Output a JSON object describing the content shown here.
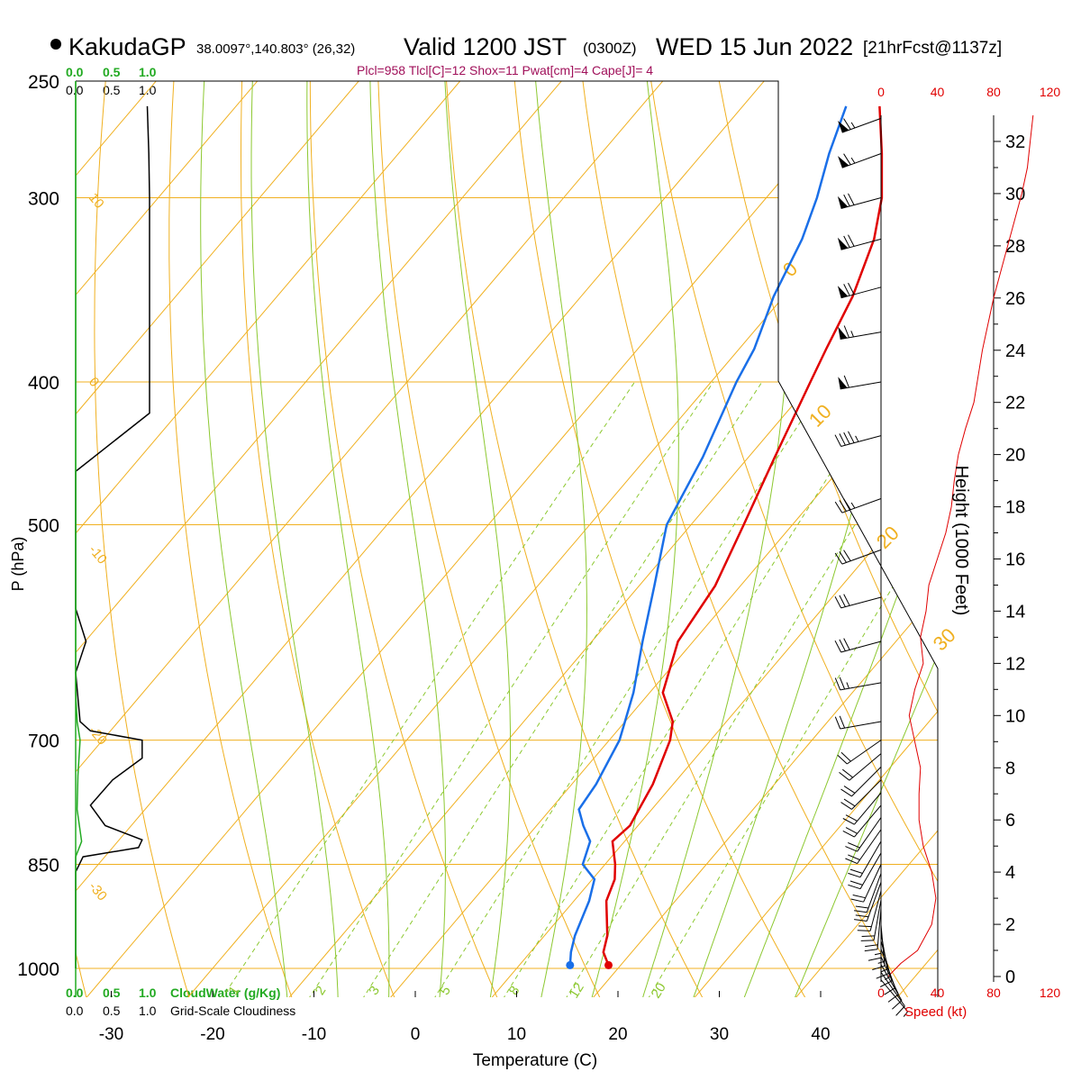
{
  "header": {
    "station": "KakudaGP",
    "coords": "38.0097°,140.803° (26,32)",
    "valid_label": "Valid 1200 JST",
    "zulu": "(0300Z)",
    "date": "WED 15 Jun 2022",
    "fcst": "[21hrFcst@1137z]",
    "indices": "Plcl=958 Tlcl[C]=12 Shox=11 Pwat[cm]=4 Cape[J]= 4"
  },
  "cloud_scale_top_green": [
    "0.0",
    "0.5",
    "1.0"
  ],
  "cloud_scale_top_black": [
    "0.0",
    "0.5",
    "1.0"
  ],
  "cloud_scale_bottom_green": [
    "0.0",
    "0.5",
    "1.0"
  ],
  "cloud_scale_bottom_black": [
    "0.0",
    "0.5",
    "1.0"
  ],
  "legend": {
    "cloudwater": "CloudWater (g/Kg)",
    "cloudiness": "Grid-Scale Cloudiness"
  },
  "axes": {
    "xlabel": "Temperature (C)",
    "ylabel": "P (hPa)",
    "height_label": "Height (1000 Feet)",
    "speed_label": "Speed (kt)"
  },
  "colors": {
    "isotherm": "#f0b020",
    "dry_adiabat": "#8cc830",
    "mixing_ratio": "#8cc830",
    "temperature": "#e00000",
    "dewpoint": "#1a6fe8",
    "cloud_water": "#22aa22",
    "cloudiness": "#000000",
    "index_text": "#a0105a",
    "speed": "#e00000"
  },
  "chart_data": {
    "type": "line",
    "title": "",
    "x_ticks": [
      "-30",
      "-20",
      "-10",
      "0",
      "10",
      "20",
      "30",
      "40"
    ],
    "xlim": [
      -35,
      43
    ],
    "p_ticks": [
      "250",
      "300",
      "400",
      "500",
      "700",
      "850",
      "1000"
    ],
    "p_tick_values": [
      250,
      300,
      400,
      500,
      700,
      850,
      1000
    ],
    "ylim_hpa": [
      1020,
      250
    ],
    "isotherm_labels": [
      {
        "text": "10",
        "t": 10,
        "p": 300
      },
      {
        "text": "0",
        "t": 0,
        "p": 400
      },
      {
        "text": "-10",
        "t": -10,
        "p": 520
      },
      {
        "text": "-20",
        "t": -20,
        "p": 690
      },
      {
        "text": "-30",
        "t": -30,
        "p": 880
      }
    ],
    "theta_labels": [
      {
        "text": "0",
        "p": 340
      },
      {
        "text": "10",
        "p": 430
      },
      {
        "text": "20",
        "p": 520
      },
      {
        "text": "30",
        "p": 610
      }
    ],
    "mixing_ratio_labels": [
      "1",
      "2",
      "3",
      "5",
      "8",
      "12",
      "20"
    ],
    "mixing_ratio_values": [
      1,
      2,
      3,
      5,
      8,
      12,
      20
    ],
    "series": [
      {
        "name": "",
        "points": [
          [
            260,
            -26.5
          ],
          [
            280,
            -22.3
          ],
          [
            300,
            -18.6
          ],
          [
            320,
            -15.9
          ],
          [
            350,
            -13.2
          ],
          [
            380,
            -11.4
          ],
          [
            400,
            -10.2
          ],
          [
            450,
            -7.4
          ],
          [
            500,
            -4.8
          ],
          [
            550,
            -2.5
          ],
          [
            600,
            -1.5
          ],
          [
            650,
            1.3
          ],
          [
            680,
            4.7
          ],
          [
            700,
            6.0
          ],
          [
            750,
            8.0
          ],
          [
            800,
            9.2
          ],
          [
            820,
            8.8
          ],
          [
            850,
            11.0
          ],
          [
            870,
            12.2
          ],
          [
            900,
            13.2
          ],
          [
            950,
            16.2
          ],
          [
            975,
            17.2
          ],
          [
            995,
            18.8
          ]
        ]
      },
      {
        "name": "",
        "points": [
          [
            260,
            -29.8
          ],
          [
            280,
            -27.5
          ],
          [
            300,
            -25.0
          ],
          [
            320,
            -23.0
          ],
          [
            350,
            -21.0
          ],
          [
            380,
            -18.5
          ],
          [
            400,
            -17.5
          ],
          [
            450,
            -14.5
          ],
          [
            500,
            -12.4
          ],
          [
            550,
            -8.5
          ],
          [
            600,
            -5.0
          ],
          [
            650,
            -1.6
          ],
          [
            700,
            1.0
          ],
          [
            750,
            2.4
          ],
          [
            780,
            2.8
          ],
          [
            800,
            4.6
          ],
          [
            820,
            6.6
          ],
          [
            850,
            7.8
          ],
          [
            870,
            10.2
          ],
          [
            900,
            11.5
          ],
          [
            950,
            13.0
          ],
          [
            975,
            14.0
          ],
          [
            995,
            15.0
          ]
        ]
      }
    ],
    "cloud_water": [
      [
        250,
        0
      ],
      [
        650,
        0
      ],
      [
        680,
        0.02
      ],
      [
        700,
        0.06
      ],
      [
        740,
        0.03
      ],
      [
        780,
        0.02
      ],
      [
        820,
        0.08
      ],
      [
        840,
        0.0
      ],
      [
        1000,
        0
      ]
    ],
    "cloudiness": [
      [
        260,
        0.97
      ],
      [
        280,
        0.99
      ],
      [
        300,
        1.0
      ],
      [
        350,
        1.0
      ],
      [
        380,
        1.0
      ],
      [
        420,
        1.0
      ],
      [
        460,
        0.0
      ],
      [
        570,
        0.0
      ],
      [
        600,
        0.14
      ],
      [
        630,
        0.0
      ],
      [
        680,
        0.06
      ],
      [
        690,
        0.2
      ],
      [
        700,
        0.9
      ],
      [
        720,
        0.9
      ],
      [
        745,
        0.5
      ],
      [
        775,
        0.2
      ],
      [
        800,
        0.4
      ],
      [
        818,
        0.9
      ],
      [
        828,
        0.85
      ],
      [
        840,
        0.1
      ],
      [
        860,
        0.0
      ],
      [
        1000,
        0.0
      ]
    ],
    "height_ticks": [
      "0",
      "2",
      "4",
      "6",
      "8",
      "10",
      "12",
      "14",
      "16",
      "18",
      "20",
      "22",
      "24",
      "26",
      "28",
      "30",
      "32"
    ],
    "speed_ticks": [
      "0",
      "40",
      "80",
      "120"
    ],
    "speed_profile_kt": [
      [
        0,
        5
      ],
      [
        0.5,
        14
      ],
      [
        1,
        26
      ],
      [
        2,
        36
      ],
      [
        3,
        39
      ],
      [
        4,
        36
      ],
      [
        5,
        30
      ],
      [
        6,
        27
      ],
      [
        7,
        27
      ],
      [
        8,
        28
      ],
      [
        9,
        24
      ],
      [
        10,
        20
      ],
      [
        11,
        24
      ],
      [
        12,
        30
      ],
      [
        13,
        28
      ],
      [
        14,
        32
      ],
      [
        15,
        34
      ],
      [
        16,
        40
      ],
      [
        17,
        46
      ],
      [
        18,
        50
      ],
      [
        19,
        52
      ],
      [
        20,
        55
      ],
      [
        21,
        60
      ],
      [
        22,
        66
      ],
      [
        24,
        72
      ],
      [
        26,
        80
      ],
      [
        28,
        90
      ],
      [
        30,
        100
      ],
      [
        31,
        104
      ],
      [
        32,
        106
      ],
      [
        33,
        108
      ]
    ],
    "wind_barbs": [
      {
        "p": 265,
        "dir": 250,
        "kt": 65
      },
      {
        "p": 280,
        "dir": 250,
        "kt": 65
      },
      {
        "p": 300,
        "dir": 255,
        "kt": 70
      },
      {
        "p": 320,
        "dir": 255,
        "kt": 70
      },
      {
        "p": 345,
        "dir": 255,
        "kt": 70
      },
      {
        "p": 370,
        "dir": 260,
        "kt": 65
      },
      {
        "p": 400,
        "dir": 260,
        "kt": 60
      },
      {
        "p": 435,
        "dir": 255,
        "kt": 45
      },
      {
        "p": 480,
        "dir": 250,
        "kt": 35
      },
      {
        "p": 520,
        "dir": 250,
        "kt": 30
      },
      {
        "p": 560,
        "dir": 255,
        "kt": 30
      },
      {
        "p": 600,
        "dir": 255,
        "kt": 30
      },
      {
        "p": 640,
        "dir": 260,
        "kt": 25
      },
      {
        "p": 680,
        "dir": 260,
        "kt": 20
      },
      {
        "p": 700,
        "dir": 235,
        "kt": 20
      },
      {
        "p": 715,
        "dir": 230,
        "kt": 20
      },
      {
        "p": 730,
        "dir": 225,
        "kt": 20
      },
      {
        "p": 745,
        "dir": 225,
        "kt": 20
      },
      {
        "p": 760,
        "dir": 220,
        "kt": 20
      },
      {
        "p": 775,
        "dir": 220,
        "kt": 20
      },
      {
        "p": 790,
        "dir": 215,
        "kt": 20
      },
      {
        "p": 805,
        "dir": 215,
        "kt": 20
      },
      {
        "p": 820,
        "dir": 210,
        "kt": 20
      },
      {
        "p": 835,
        "dir": 210,
        "kt": 20
      },
      {
        "p": 850,
        "dir": 205,
        "kt": 20
      },
      {
        "p": 862,
        "dir": 200,
        "kt": 20
      },
      {
        "p": 874,
        "dir": 200,
        "kt": 20
      },
      {
        "p": 886,
        "dir": 195,
        "kt": 20
      },
      {
        "p": 898,
        "dir": 190,
        "kt": 20
      },
      {
        "p": 910,
        "dir": 185,
        "kt": 20
      },
      {
        "p": 922,
        "dir": 180,
        "kt": 15
      },
      {
        "p": 934,
        "dir": 175,
        "kt": 15
      },
      {
        "p": 946,
        "dir": 170,
        "kt": 15
      },
      {
        "p": 958,
        "dir": 165,
        "kt": 15
      },
      {
        "p": 970,
        "dir": 160,
        "kt": 10
      },
      {
        "p": 982,
        "dir": 155,
        "kt": 10
      },
      {
        "p": 994,
        "dir": 150,
        "kt": 10
      },
      {
        "p": 1006,
        "dir": 145,
        "kt": 10
      },
      {
        "p": 1018,
        "dir": 140,
        "kt": 5
      }
    ]
  }
}
